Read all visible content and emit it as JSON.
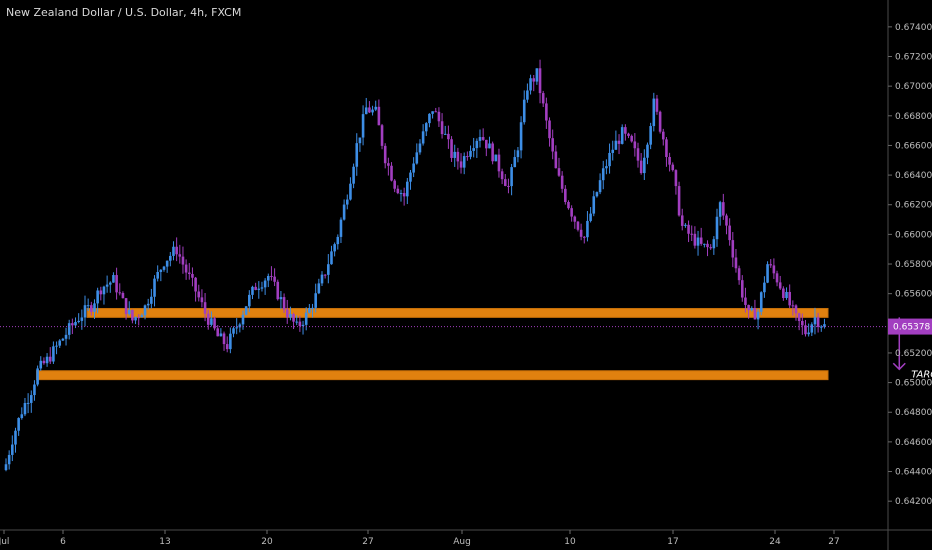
{
  "header": {
    "title": "New Zealand Dollar / U.S. Dollar, 4h, FXCM"
  },
  "colors": {
    "background": "#000000",
    "bull": "#3d8ee6",
    "bear": "#a23ec0",
    "zone": "#e0810f",
    "marker": "#a23ec0",
    "price_tag": "#a23ec0"
  },
  "chart_data": {
    "type": "candlestick",
    "title": "New Zealand Dollar / U.S. Dollar, 4h, FXCM",
    "ylim": [
      0.641,
      0.6748
    ],
    "y_ticks": [
      "0.67400",
      "0.67200",
      "0.67000",
      "0.66800",
      "0.66600",
      "0.66400",
      "0.66200",
      "0.66000",
      "0.65800",
      "0.65600",
      "0.65200",
      "0.65000",
      "0.64800",
      "0.64600",
      "0.64400",
      "0.64200"
    ],
    "x_ticks": [
      "Jul",
      "6",
      "13",
      "20",
      "27",
      "Aug",
      "10",
      "17",
      "24",
      "27"
    ],
    "current_price": {
      "value": 0.65378,
      "label": "0.65378"
    },
    "price_path": [
      [
        0,
        0.6445
      ],
      [
        2,
        0.6462
      ],
      [
        5,
        0.6481
      ],
      [
        8,
        0.6495
      ],
      [
        10,
        0.6508
      ],
      [
        13,
        0.6515
      ],
      [
        17,
        0.6527
      ],
      [
        20,
        0.6536
      ],
      [
        23,
        0.6544
      ],
      [
        27,
        0.6552
      ],
      [
        30,
        0.6564
      ],
      [
        34,
        0.6569
      ],
      [
        37,
        0.6554
      ],
      [
        40,
        0.6542
      ],
      [
        44,
        0.6551
      ],
      [
        47,
        0.6568
      ],
      [
        50,
        0.6582
      ],
      [
        54,
        0.659
      ],
      [
        57,
        0.6575
      ],
      [
        60,
        0.6562
      ],
      [
        63,
        0.6547
      ],
      [
        67,
        0.6531
      ],
      [
        70,
        0.6525
      ],
      [
        73,
        0.6538
      ],
      [
        76,
        0.6553
      ],
      [
        79,
        0.6565
      ],
      [
        83,
        0.6572
      ],
      [
        86,
        0.656
      ],
      [
        89,
        0.6547
      ],
      [
        92,
        0.6537
      ],
      [
        95,
        0.6545
      ],
      [
        98,
        0.6558
      ],
      [
        101,
        0.6575
      ],
      [
        105,
        0.66
      ],
      [
        108,
        0.6628
      ],
      [
        111,
        0.666
      ],
      [
        114,
        0.6685
      ],
      [
        117,
        0.6682
      ],
      [
        120,
        0.6652
      ],
      [
        123,
        0.6634
      ],
      [
        126,
        0.6626
      ],
      [
        129,
        0.665
      ],
      [
        132,
        0.6667
      ],
      [
        135,
        0.6685
      ],
      [
        138,
        0.6672
      ],
      [
        141,
        0.6654
      ],
      [
        144,
        0.6648
      ],
      [
        147,
        0.666
      ],
      [
        150,
        0.6668
      ],
      [
        153,
        0.6658
      ],
      [
        156,
        0.6645
      ],
      [
        159,
        0.6632
      ],
      [
        162,
        0.666
      ],
      [
        165,
        0.67
      ],
      [
        168,
        0.6708
      ],
      [
        171,
        0.6675
      ],
      [
        174,
        0.6643
      ],
      [
        177,
        0.6625
      ],
      [
        180,
        0.661
      ],
      [
        183,
        0.6598
      ],
      [
        186,
        0.6622
      ],
      [
        189,
        0.6642
      ],
      [
        192,
        0.6658
      ],
      [
        195,
        0.6668
      ],
      [
        198,
        0.666
      ],
      [
        201,
        0.6645
      ],
      [
        203,
        0.6665
      ],
      [
        205,
        0.6688
      ],
      [
        208,
        0.6665
      ],
      [
        211,
        0.664
      ],
      [
        214,
        0.6605
      ],
      [
        217,
        0.6598
      ],
      [
        220,
        0.6592
      ],
      [
        223,
        0.659
      ],
      [
        226,
        0.662
      ],
      [
        229,
        0.6598
      ],
      [
        232,
        0.6568
      ],
      [
        235,
        0.6545
      ],
      [
        238,
        0.6548
      ],
      [
        241,
        0.658
      ],
      [
        244,
        0.657
      ],
      [
        247,
        0.6557
      ],
      [
        250,
        0.6543
      ],
      [
        253,
        0.6534
      ],
      [
        256,
        0.6544
      ],
      [
        259,
        0.6538
      ]
    ],
    "zones": [
      {
        "from": 0.6544,
        "to": 0.655,
        "x_start": 26,
        "x_end": 348
      },
      {
        "from": 0.6502,
        "to": 0.6508,
        "x_start": 10,
        "x_end": 348
      }
    ],
    "markers": [
      {
        "x_from": 0.6544,
        "to": 0.6509,
        "x": 283
      },
      {
        "x_from": 0.6544,
        "to": 0.6509,
        "x": 303
      }
    ],
    "annotation": {
      "text": "TARGET",
      "x": 293,
      "y": 0.6506
    }
  }
}
